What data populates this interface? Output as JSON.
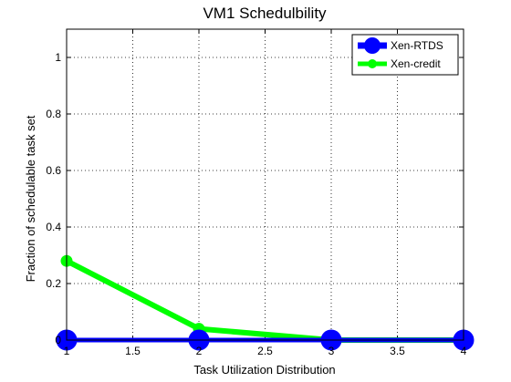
{
  "chart_data": {
    "type": "line",
    "title": "VM1 Schedulbility",
    "xlabel": "Task Utilization Distribution",
    "ylabel": "Fraction of schedulable task set",
    "xlim": [
      1,
      4
    ],
    "ylim": [
      0,
      1.1
    ],
    "x_ticks": [
      1,
      1.5,
      2,
      2.5,
      3,
      3.5,
      4
    ],
    "x_tick_labels": [
      "1",
      "1.5",
      "2",
      "2.5",
      "3",
      "3.5",
      "4"
    ],
    "y_ticks": [
      0,
      0.2,
      0.4,
      0.6,
      0.8,
      1
    ],
    "y_tick_labels": [
      "0",
      "0.2",
      "0.4",
      "0.6",
      "0.8",
      "1"
    ],
    "grid": true,
    "grid_style": "dotted",
    "legend_position": "top-right",
    "x": [
      1,
      2,
      3,
      4
    ],
    "series": [
      {
        "name": "Xen-RTDS",
        "values": [
          0,
          0,
          0,
          0
        ],
        "color": "#0000ff",
        "marker": "circle"
      },
      {
        "name": "Xen-credit",
        "values": [
          0.28,
          0.04,
          0,
          0
        ],
        "color": "#00ff00",
        "marker": "circle"
      }
    ]
  }
}
